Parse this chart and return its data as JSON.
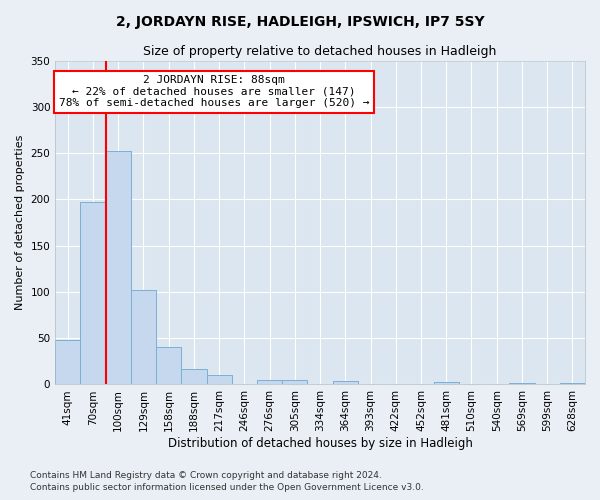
{
  "title": "2, JORDAYN RISE, HADLEIGH, IPSWICH, IP7 5SY",
  "subtitle": "Size of property relative to detached houses in Hadleigh",
  "xlabel": "Distribution of detached houses by size in Hadleigh",
  "ylabel": "Number of detached properties",
  "categories": [
    "41sqm",
    "70sqm",
    "100sqm",
    "129sqm",
    "158sqm",
    "188sqm",
    "217sqm",
    "246sqm",
    "276sqm",
    "305sqm",
    "334sqm",
    "364sqm",
    "393sqm",
    "422sqm",
    "452sqm",
    "481sqm",
    "510sqm",
    "540sqm",
    "569sqm",
    "599sqm",
    "628sqm"
  ],
  "values": [
    48,
    197,
    252,
    102,
    40,
    17,
    10,
    0,
    5,
    5,
    0,
    4,
    0,
    0,
    0,
    3,
    0,
    0,
    2,
    0,
    2
  ],
  "bar_color": "#c5d8ee",
  "bar_edge_color": "#7bafd4",
  "background_color": "#eaeff5",
  "plot_background": "#dce6f0",
  "vline_color": "red",
  "annotation_text": "2 JORDAYN RISE: 88sqm\n← 22% of detached houses are smaller (147)\n78% of semi-detached houses are larger (520) →",
  "annotation_box_color": "white",
  "annotation_box_edge": "red",
  "ylim": [
    0,
    350
  ],
  "yticks": [
    0,
    50,
    100,
    150,
    200,
    250,
    300,
    350
  ],
  "footer_line1": "Contains HM Land Registry data © Crown copyright and database right 2024.",
  "footer_line2": "Contains public sector information licensed under the Open Government Licence v3.0.",
  "title_fontsize": 10,
  "subtitle_fontsize": 9,
  "xlabel_fontsize": 8.5,
  "ylabel_fontsize": 8,
  "tick_fontsize": 7.5,
  "annotation_fontsize": 8,
  "footer_fontsize": 6.5
}
